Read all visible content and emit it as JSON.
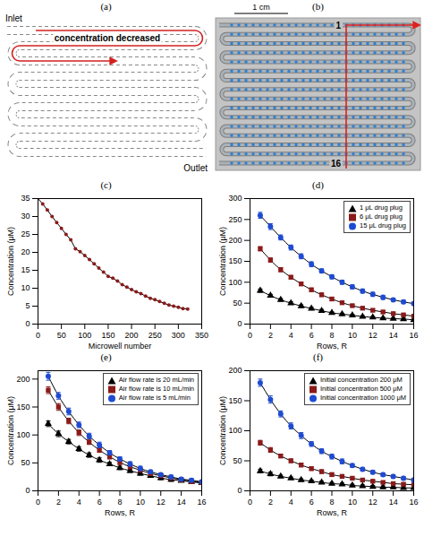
{
  "diagram_a": {
    "label": "(a)",
    "inlet": "Inlet",
    "outlet": "Outlet",
    "annotation": "concentration decreased"
  },
  "image_b": {
    "label": "(b)",
    "scale_bar": "1 cm",
    "row_first": "1",
    "row_last": "16"
  },
  "chart_data": [
    {
      "type": "line",
      "title": "(c)",
      "x_label": "Microwell number",
      "y_label": "Concentration (μM)",
      "x": [
        0,
        10,
        20,
        30,
        40,
        50,
        60,
        70,
        80,
        90,
        100,
        110,
        120,
        130,
        140,
        150,
        160,
        170,
        180,
        190,
        200,
        210,
        220,
        230,
        240,
        250,
        260,
        270,
        280,
        290,
        300,
        310,
        320
      ],
      "values": [
        35,
        33.5,
        31.8,
        30,
        28.3,
        26.7,
        25,
        23.5,
        21,
        20.2,
        19.1,
        18,
        16.8,
        15.6,
        14.5,
        13.3,
        12.8,
        12,
        11,
        10.3,
        9.6,
        9,
        8.5,
        7.8,
        7.2,
        6.8,
        6.3,
        5.8,
        5.3,
        5,
        4.7,
        4.3,
        4.2
      ],
      "color": "#8b1a1a",
      "marker": "circle",
      "line_style": "solid",
      "xlim": [
        0,
        350
      ],
      "xticks": [
        0,
        50,
        100,
        150,
        200,
        250,
        300,
        350
      ],
      "ylim": [
        0,
        35
      ],
      "yticks": [
        0,
        5,
        10,
        15,
        20,
        25,
        30,
        35
      ],
      "grid": false
    },
    {
      "type": "line",
      "title": "(d)",
      "x_label": "Rows, R",
      "y_label": "Concentration (μM)",
      "x": [
        1,
        2,
        3,
        4,
        5,
        6,
        7,
        8,
        9,
        10,
        11,
        12,
        13,
        14,
        15,
        16
      ],
      "series": [
        {
          "name": "1 μL drug plug",
          "color": "#000000",
          "marker": "triangle",
          "values": [
            80,
            68,
            58,
            50,
            43,
            37,
            32,
            27,
            24,
            21,
            18,
            16,
            14,
            13,
            12,
            10
          ],
          "errors": [
            4,
            3,
            3,
            3,
            3,
            3,
            3,
            2,
            2,
            2,
            2,
            2,
            2,
            2,
            2,
            2
          ]
        },
        {
          "name": "6 μL drug plug",
          "color": "#8b1a1a",
          "marker": "square",
          "values": [
            180,
            153,
            130,
            112,
            96,
            82,
            70,
            60,
            51,
            44,
            38,
            33,
            29,
            25,
            22,
            19
          ],
          "errors": [
            5,
            5,
            5,
            4,
            4,
            4,
            4,
            4,
            3,
            3,
            3,
            3,
            3,
            3,
            3,
            3
          ]
        },
        {
          "name": "15 μL drug plug",
          "color": "#1e4bd2",
          "marker": "circle",
          "values": [
            260,
            233,
            207,
            183,
            162,
            143,
            127,
            113,
            100,
            89,
            79,
            71,
            64,
            58,
            53,
            49
          ],
          "errors": [
            7,
            7,
            6,
            6,
            6,
            6,
            5,
            5,
            5,
            5,
            5,
            5,
            5,
            4,
            4,
            4
          ]
        }
      ],
      "line_style": "solid",
      "legend": "top-right",
      "xlim": [
        0,
        16
      ],
      "xticks": [
        0,
        2,
        4,
        6,
        8,
        10,
        12,
        14,
        16
      ],
      "ylim": [
        0,
        300
      ],
      "yticks": [
        0,
        50,
        100,
        150,
        200,
        250,
        300
      ],
      "grid": false
    },
    {
      "type": "line",
      "title": "(e)",
      "x_label": "Rows, R",
      "y_label": "Concentration (μM)",
      "x": [
        1,
        2,
        3,
        4,
        5,
        6,
        7,
        8,
        9,
        10,
        11,
        12,
        13,
        14,
        15,
        16
      ],
      "series": [
        {
          "name": "Air flow rate is 20 mL/min",
          "color": "#000000",
          "marker": "triangle",
          "values": [
            120,
            102,
            88,
            75,
            64,
            55,
            48,
            41,
            36,
            31,
            27,
            23,
            20,
            18,
            16,
            14
          ],
          "errors": [
            5,
            5,
            4,
            4,
            4,
            4,
            3,
            3,
            3,
            3,
            3,
            3,
            3,
            2,
            2,
            2
          ]
        },
        {
          "name": "Air flow rate is 10 mL/min",
          "color": "#8b1a1a",
          "marker": "square",
          "values": [
            180,
            150,
            125,
            104,
            87,
            73,
            61,
            51,
            43,
            37,
            31,
            27,
            23,
            20,
            17,
            15
          ],
          "errors": [
            6,
            6,
            5,
            5,
            4,
            4,
            4,
            4,
            3,
            3,
            3,
            3,
            3,
            3,
            3,
            3
          ]
        },
        {
          "name": "Air flow rate is 5 mL/min",
          "color": "#1e4bd2",
          "marker": "circle",
          "values": [
            205,
            170,
            142,
            118,
            98,
            82,
            68,
            57,
            48,
            40,
            34,
            29,
            25,
            21,
            19,
            16
          ],
          "errors": [
            7,
            6,
            6,
            5,
            5,
            5,
            4,
            4,
            4,
            4,
            3,
            3,
            3,
            3,
            3,
            3
          ]
        }
      ],
      "line_style": "solid",
      "legend": "top-right",
      "xlim": [
        0,
        16
      ],
      "xticks": [
        0,
        2,
        4,
        6,
        8,
        10,
        12,
        14,
        16
      ],
      "ylim": [
        0,
        215
      ],
      "yticks": [
        0,
        50,
        100,
        150,
        200
      ],
      "grid": false
    },
    {
      "type": "line",
      "title": "(f)",
      "x_label": "Rows, R",
      "y_label": "Concentration (μM)",
      "x": [
        1,
        2,
        3,
        4,
        5,
        6,
        7,
        8,
        9,
        10,
        11,
        12,
        13,
        14,
        15,
        16
      ],
      "series": [
        {
          "name": "Initial concentration 200 μM",
          "color": "#000000",
          "marker": "triangle",
          "values": [
            33,
            28,
            24,
            21,
            18,
            16,
            14,
            12,
            11,
            9,
            8,
            7,
            6,
            6,
            5,
            5
          ],
          "errors": [
            3,
            3,
            2,
            2,
            2,
            2,
            2,
            2,
            2,
            2,
            2,
            2,
            2,
            2,
            2,
            2
          ]
        },
        {
          "name": "Initial concentration 500 μM",
          "color": "#8b1a1a",
          "marker": "square",
          "values": [
            80,
            68,
            58,
            50,
            43,
            37,
            32,
            27,
            24,
            21,
            18,
            16,
            14,
            12,
            11,
            10
          ],
          "errors": [
            4,
            4,
            3,
            3,
            3,
            3,
            3,
            3,
            3,
            2,
            2,
            2,
            2,
            2,
            2,
            2
          ]
        },
        {
          "name": "Initial concentration 1000 μM",
          "color": "#1e4bd2",
          "marker": "circle",
          "values": [
            180,
            152,
            128,
            108,
            92,
            78,
            66,
            57,
            49,
            42,
            36,
            31,
            27,
            24,
            21,
            18
          ],
          "errors": [
            6,
            6,
            5,
            5,
            5,
            4,
            4,
            4,
            4,
            3,
            3,
            3,
            3,
            3,
            3,
            3
          ]
        }
      ],
      "line_style": "solid",
      "legend": "top-right",
      "xlim": [
        0,
        16
      ],
      "xticks": [
        0,
        2,
        4,
        6,
        8,
        10,
        12,
        14,
        16
      ],
      "ylim": [
        0,
        200
      ],
      "yticks": [
        0,
        50,
        100,
        150,
        200
      ],
      "grid": false
    }
  ]
}
